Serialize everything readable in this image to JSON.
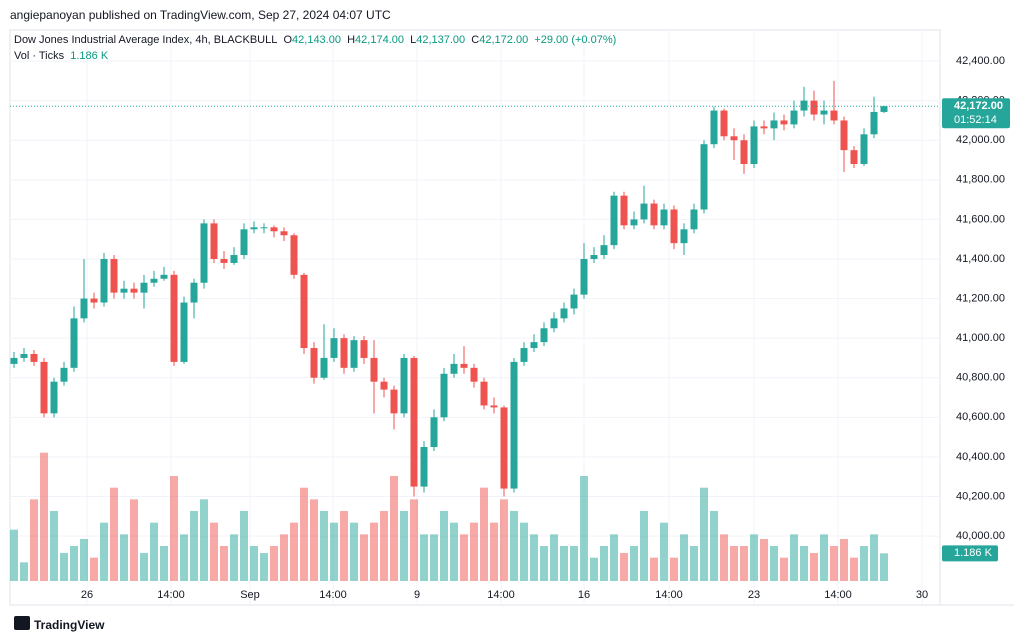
{
  "header": {
    "publisher": "angiepanoyan published on TradingView.com, Sep 27, 2024 04:07 UTC",
    "footer": "TradingView"
  },
  "legend": {
    "symbol": "Dow Jones Industrial Average Index, 4h, BLACKBULL",
    "o_label": "O",
    "o": "42,143.00",
    "h_label": "H",
    "h": "42,174.00",
    "l_label": "L",
    "l": "42,137.00",
    "c_label": "C",
    "c": "42,172.00",
    "change": "+29.00 (+0.07%)",
    "volume_name": "Vol · Ticks"
  },
  "chart_data": {
    "type": "candlestick",
    "up_color": "#26a69a",
    "down_color": "#ef5350",
    "open": [
      40870,
      40900,
      40920,
      40880,
      40620,
      40780,
      40850,
      41100,
      41200,
      41180,
      41400,
      41230,
      41250,
      41230,
      41280,
      41300,
      41320,
      40880,
      41180,
      41280,
      41580,
      41400,
      41380,
      41420,
      41550,
      41560,
      41560,
      41540,
      41520,
      41320,
      40950,
      40800,
      40900,
      41000,
      40850,
      40990,
      40900,
      40780,
      40740,
      40620,
      40900,
      40250,
      40450,
      40600,
      40820,
      40870,
      40850,
      40780,
      40660,
      40650,
      40240,
      40880,
      40950,
      40980,
      41050,
      41100,
      41150,
      41220,
      41400,
      41420,
      41470,
      41720,
      41570,
      41600,
      41680,
      41570,
      41650,
      41480,
      41550,
      41650,
      41980,
      42150,
      42020,
      42000,
      41880,
      42070,
      42060,
      42100,
      42080,
      42150,
      42200,
      42130,
      42150,
      42100,
      41950,
      41880,
      42030,
      42143
    ],
    "high": [
      40930,
      40950,
      40940,
      40900,
      40800,
      40880,
      41160,
      41400,
      41230,
      41430,
      41420,
      41290,
      41280,
      41320,
      41340,
      41360,
      41340,
      41210,
      41300,
      41600,
      41600,
      41440,
      41460,
      41580,
      41590,
      41580,
      41570,
      41560,
      41530,
      41330,
      40980,
      41070,
      41050,
      41020,
      41010,
      41010,
      40990,
      40800,
      40760,
      40920,
      40910,
      40480,
      40640,
      40850,
      40920,
      40960,
      40870,
      40800,
      40700,
      40660,
      40900,
      40980,
      41020,
      41080,
      41130,
      41180,
      41250,
      41480,
      41460,
      41520,
      41740,
      41740,
      41640,
      41770,
      41700,
      41680,
      41670,
      41580,
      41680,
      42000,
      42170,
      42160,
      42060,
      42030,
      42100,
      42100,
      42140,
      42130,
      42200,
      42270,
      42250,
      42200,
      42300,
      42120,
      41970,
      42060,
      42220,
      42174
    ],
    "low": [
      40850,
      40880,
      40860,
      40600,
      40600,
      40760,
      40830,
      41080,
      41150,
      41160,
      41200,
      41200,
      41200,
      41150,
      41260,
      41290,
      40860,
      40870,
      41100,
      41250,
      41380,
      41350,
      41370,
      41400,
      41530,
      41530,
      41510,
      41490,
      41300,
      40920,
      40770,
      40790,
      40880,
      40820,
      40830,
      40870,
      40620,
      40700,
      40540,
      40600,
      40200,
      40220,
      40430,
      40580,
      40800,
      40820,
      40750,
      40640,
      40620,
      40200,
      40220,
      40860,
      40930,
      40960,
      41030,
      41080,
      41120,
      41200,
      41380,
      41400,
      41450,
      41550,
      41550,
      41580,
      41550,
      41550,
      41450,
      41420,
      41530,
      41630,
      41960,
      42000,
      41900,
      41830,
      41860,
      42030,
      42000,
      42050,
      42060,
      42120,
      42100,
      42080,
      42080,
      41840,
      41860,
      41870,
      42010,
      42137
    ],
    "close": [
      40900,
      40920,
      40880,
      40620,
      40780,
      40850,
      41100,
      41200,
      41180,
      41400,
      41230,
      41250,
      41230,
      41280,
      41300,
      41320,
      40880,
      41180,
      41280,
      41580,
      41400,
      41380,
      41420,
      41550,
      41560,
      41560,
      41540,
      41520,
      41320,
      40950,
      40800,
      40900,
      41000,
      40850,
      40990,
      40900,
      40780,
      40740,
      40620,
      40900,
      40250,
      40450,
      40600,
      40820,
      40870,
      40850,
      40780,
      40660,
      40650,
      40240,
      40880,
      40950,
      40980,
      41050,
      41100,
      41150,
      41220,
      41400,
      41420,
      41470,
      41720,
      41570,
      41600,
      41680,
      41570,
      41650,
      41480,
      41550,
      41650,
      41980,
      42150,
      42020,
      42000,
      41880,
      42070,
      42060,
      42100,
      42080,
      42150,
      42200,
      42130,
      42150,
      42100,
      41950,
      41880,
      42030,
      42143,
      42172
    ],
    "volume": {
      "values": [
        2.2,
        0.8,
        3.5,
        5.5,
        3.0,
        1.2,
        1.5,
        1.8,
        1.0,
        2.5,
        4.0,
        2.0,
        3.5,
        1.2,
        2.5,
        1.5,
        4.5,
        2.0,
        3.0,
        3.5,
        2.5,
        1.5,
        2.0,
        3.0,
        1.5,
        1.2,
        1.5,
        2.0,
        2.5,
        4.0,
        3.5,
        3.0,
        2.5,
        3.0,
        2.5,
        2.0,
        2.5,
        3.0,
        4.5,
        3.0,
        3.5,
        2.0,
        2.0,
        3.0,
        2.5,
        2.0,
        2.5,
        4.0,
        2.5,
        3.5,
        3.0,
        2.5,
        2.0,
        1.5,
        2.0,
        1.5,
        1.5,
        4.5,
        1.0,
        1.5,
        2.0,
        1.2,
        1.5,
        3.0,
        1.0,
        2.5,
        1.0,
        2.0,
        1.5,
        4.0,
        3.0,
        2.0,
        1.5,
        1.5,
        2.0,
        1.8,
        1.5,
        1.0,
        2.0,
        1.5,
        1.2,
        2.0,
        1.5,
        1.8,
        1.0,
        1.5,
        2.0,
        1.186
      ],
      "last_label": "1.186 K",
      "ylim": [
        0,
        6
      ]
    },
    "last_price_label": "42,172.00",
    "countdown": "01:52:14",
    "ylim": [
      39773,
      42557
    ],
    "yticks": [
      {
        "value": 40000,
        "label": "40,000.00"
      },
      {
        "value": 40200,
        "label": "40,200.00"
      },
      {
        "value": 40400,
        "label": "40,400.00"
      },
      {
        "value": 40600,
        "label": "40,600.00"
      },
      {
        "value": 40800,
        "label": "40,800.00"
      },
      {
        "value": 41000,
        "label": "41,000.00"
      },
      {
        "value": 41200,
        "label": "41,200.00"
      },
      {
        "value": 41400,
        "label": "41,400.00"
      },
      {
        "value": 41600,
        "label": "41,600.00"
      },
      {
        "value": 41800,
        "label": "41,800.00"
      },
      {
        "value": 42000,
        "label": "42,000.00"
      },
      {
        "value": 42200,
        "label": "42,200.00"
      },
      {
        "value": 42400,
        "label": "42,400.00"
      }
    ],
    "xlim": [
      -0.4,
      92.6
    ],
    "xticks": [
      {
        "value": 7.3,
        "label": "26"
      },
      {
        "value": 15.7,
        "label": "14:00"
      },
      {
        "value": 23.6,
        "label": "Sep"
      },
      {
        "value": 31.9,
        "label": "14:00"
      },
      {
        "value": 40.3,
        "label": "9"
      },
      {
        "value": 48.7,
        "label": "14:00"
      },
      {
        "value": 57,
        "label": "16"
      },
      {
        "value": 65.5,
        "label": "14:00"
      },
      {
        "value": 74,
        "label": "23"
      },
      {
        "value": 82.4,
        "label": "14:00"
      },
      {
        "value": 90.8,
        "label": "30"
      }
    ],
    "grid": true
  }
}
